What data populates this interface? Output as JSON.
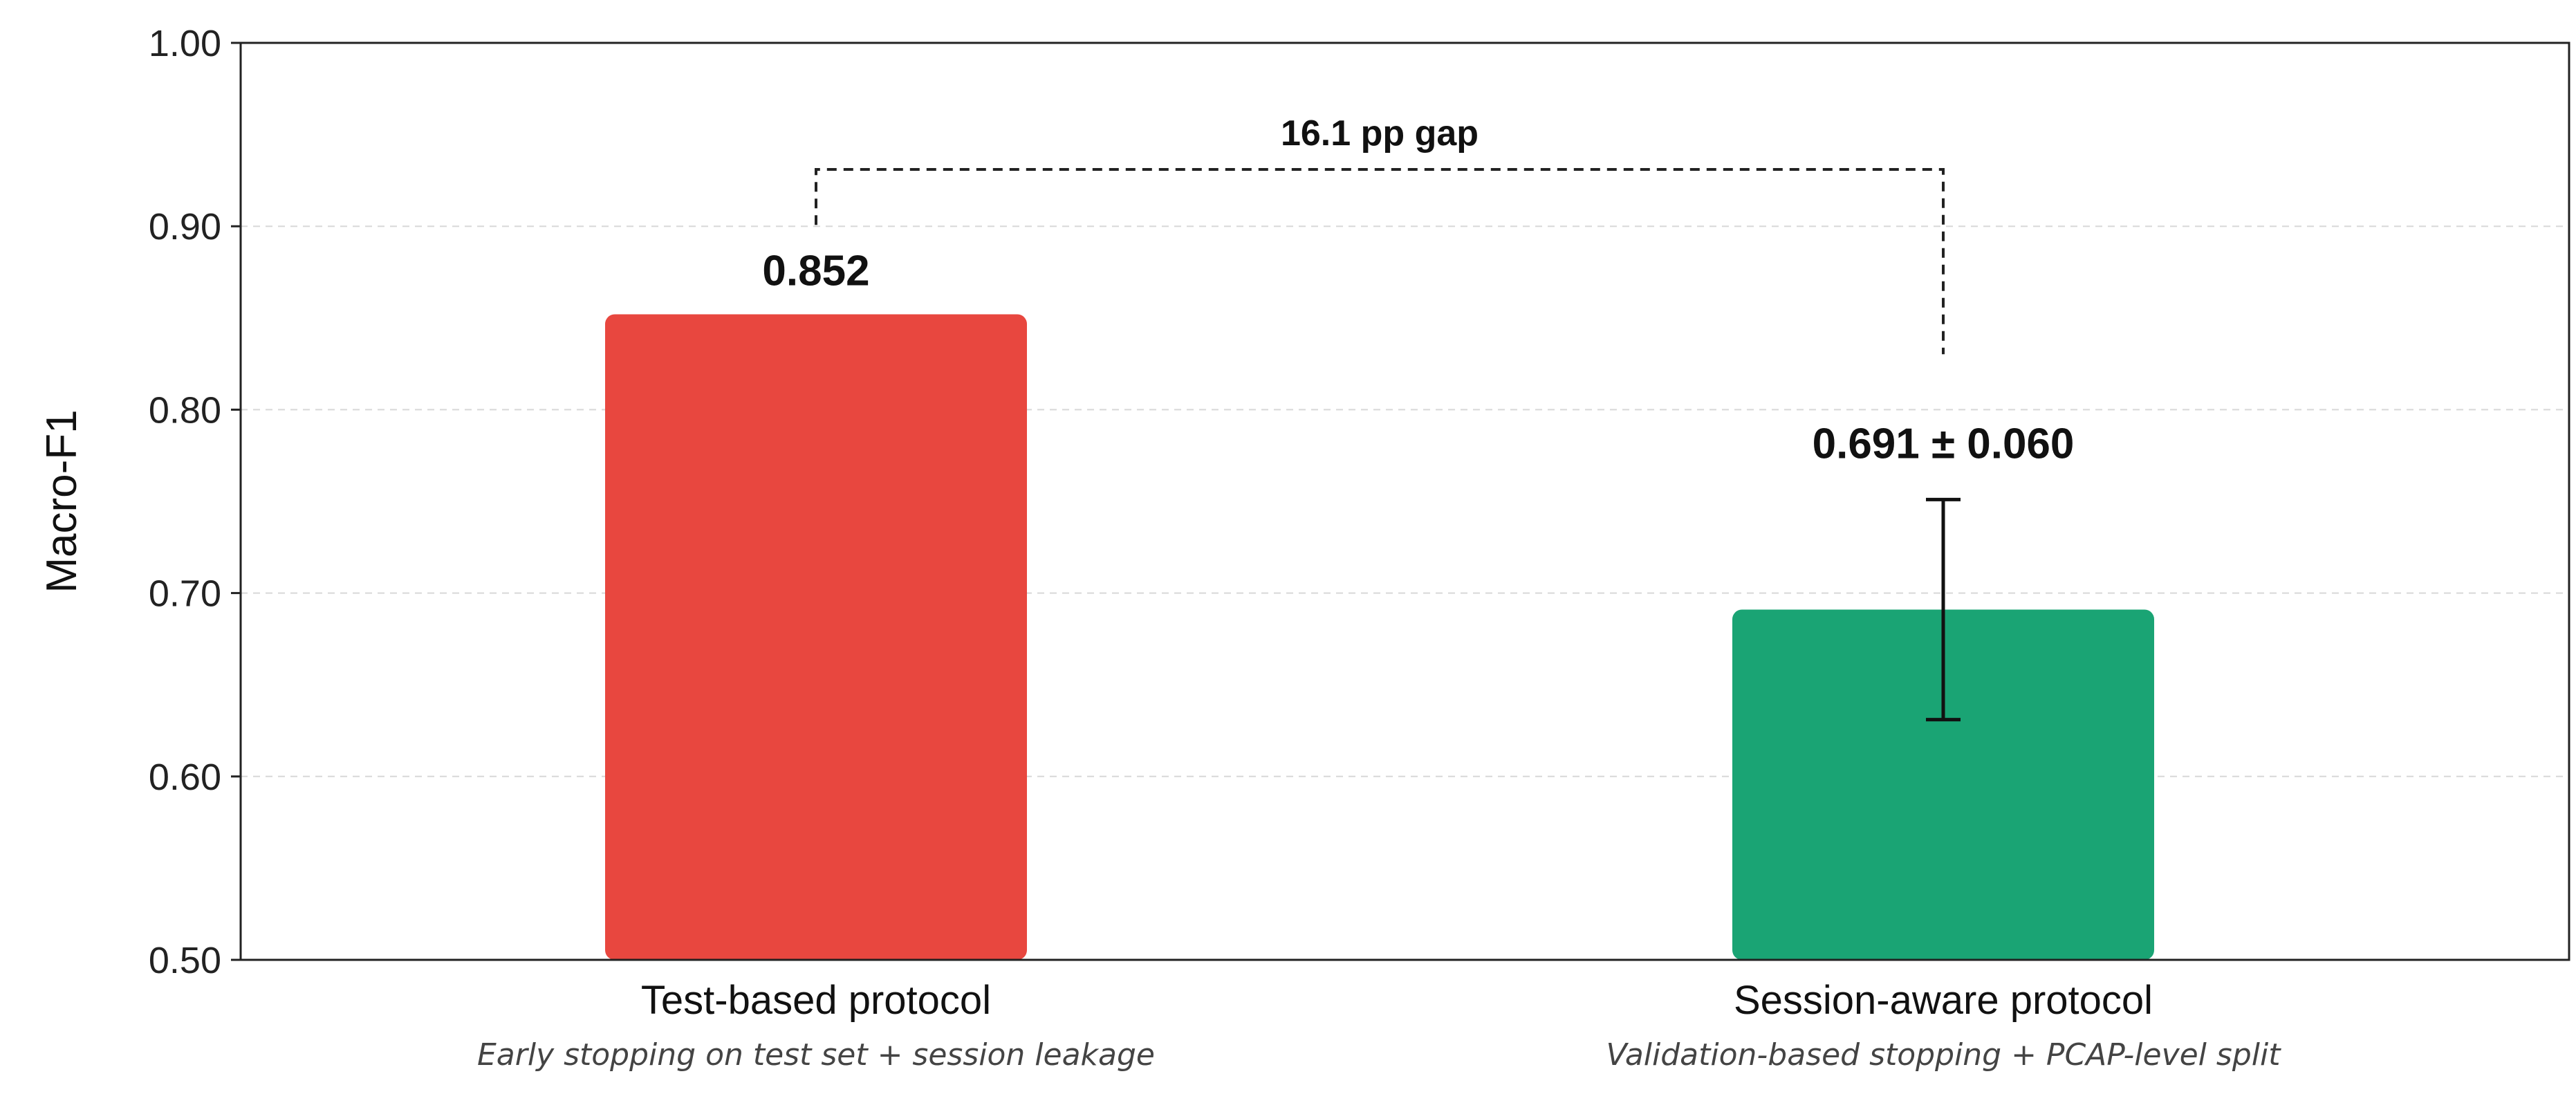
{
  "chart_data": {
    "type": "bar",
    "ylabel": "Macro-F1",
    "ylim": [
      0.5,
      1.0
    ],
    "yticks": [
      "0.50",
      "0.60",
      "0.70",
      "0.80",
      "0.90",
      "1.00"
    ],
    "grid": "horizontal dashed",
    "categories": [
      "Test-based protocol",
      "Session-aware protocol"
    ],
    "category_subtitles": [
      "Early stopping on test set + session leakage",
      "Validation-based stopping + PCAP-level split"
    ],
    "values": [
      0.852,
      0.691
    ],
    "errors": [
      null,
      0.06
    ],
    "data_labels": [
      "0.852",
      "0.691 ± 0.060"
    ],
    "colors": [
      "#e8473f",
      "#1aa474"
    ],
    "annotation": {
      "text": "16.1 pp gap",
      "from": 0,
      "to": 1
    }
  }
}
